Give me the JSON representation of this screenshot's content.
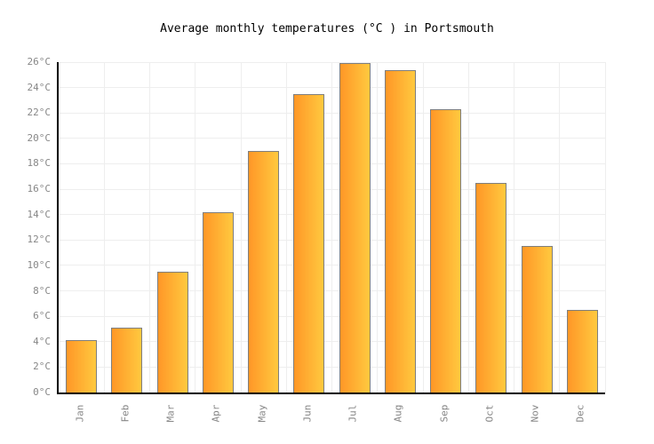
{
  "title": "Average monthly temperatures (°C ) in Portsmouth",
  "chart_data": {
    "type": "bar",
    "title": "Average monthly temperatures (°C ) in Portsmouth",
    "categories": [
      "Jan",
      "Feb",
      "Mar",
      "Apr",
      "May",
      "Jun",
      "Jul",
      "Aug",
      "Sep",
      "Oct",
      "Nov",
      "Dec"
    ],
    "values": [
      4.1,
      5.1,
      9.5,
      14.2,
      19.0,
      23.5,
      25.9,
      25.4,
      22.3,
      16.5,
      11.5,
      6.5
    ],
    "xlabel": "",
    "ylabel": "",
    "ylim": [
      0,
      26
    ],
    "ytick_step": 2,
    "ytick_suffix": "°C",
    "grid": true,
    "legend": false,
    "colors": {
      "bar_gradient_left": "#ff9727",
      "bar_gradient_right": "#ffc93f",
      "bar_border": "#7e7e7e",
      "gridline": "#eeeeee",
      "axis": "#000000",
      "tick_label": "#878787",
      "title_text": "#000000",
      "background": "#ffffff"
    }
  }
}
